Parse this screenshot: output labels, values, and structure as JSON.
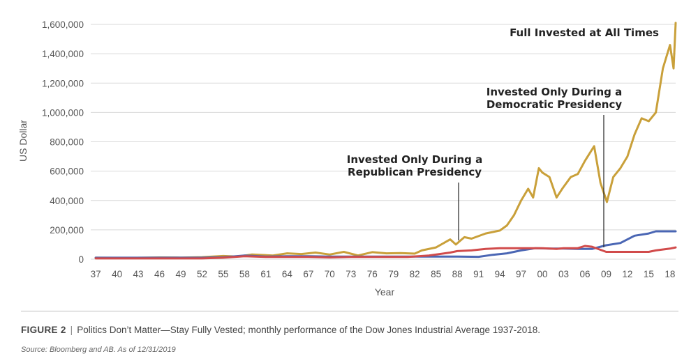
{
  "chart_data": {
    "type": "line",
    "ylabel": "US Dollar",
    "xlabel": "Year",
    "ylim": [
      0,
      1600000
    ],
    "yticks": [
      0,
      200000,
      400000,
      600000,
      800000,
      1000000,
      1200000,
      1400000,
      1600000
    ],
    "ytick_labels": [
      "0",
      "200,000",
      "400,000",
      "600,000",
      "800,000",
      "1,000,000",
      "1,200,000",
      "1,400,000",
      "1,600,000"
    ],
    "xlim": [
      1936.3,
      2018.8
    ],
    "xticks": [
      1937,
      1940,
      1943,
      1946,
      1949,
      1952,
      1955,
      1958,
      1961,
      1964,
      1967,
      1970,
      1973,
      1976,
      1979,
      1982,
      1985,
      1988,
      1991,
      1994,
      1997,
      2000,
      2003,
      2006,
      2009,
      2012,
      2015,
      2018
    ],
    "xtick_labels": [
      "37",
      "40",
      "43",
      "46",
      "49",
      "52",
      "55",
      "58",
      "61",
      "64",
      "67",
      "70",
      "73",
      "76",
      "79",
      "82",
      "85",
      "88",
      "91",
      "94",
      "97",
      "00",
      "03",
      "06",
      "09",
      "12",
      "15",
      "18"
    ],
    "grid": "horizontal",
    "series": [
      {
        "key": "full",
        "color": "#C9A03A",
        "points": [
          [
            1937,
            10000
          ],
          [
            1942,
            9000
          ],
          [
            1946,
            12000
          ],
          [
            1949,
            11000
          ],
          [
            1952,
            14000
          ],
          [
            1955,
            22000
          ],
          [
            1957,
            18000
          ],
          [
            1959,
            32000
          ],
          [
            1962,
            25000
          ],
          [
            1964,
            40000
          ],
          [
            1966,
            35000
          ],
          [
            1968,
            45000
          ],
          [
            1970,
            32000
          ],
          [
            1972,
            50000
          ],
          [
            1974,
            25000
          ],
          [
            1976,
            48000
          ],
          [
            1978,
            40000
          ],
          [
            1980,
            42000
          ],
          [
            1982,
            38000
          ],
          [
            1983,
            60000
          ],
          [
            1985,
            80000
          ],
          [
            1987,
            135000
          ],
          [
            1987.8,
            100000
          ],
          [
            1989,
            150000
          ],
          [
            1990,
            140000
          ],
          [
            1992,
            175000
          ],
          [
            1994,
            195000
          ],
          [
            1995,
            230000
          ],
          [
            1996,
            300000
          ],
          [
            1997,
            400000
          ],
          [
            1998,
            480000
          ],
          [
            1998.7,
            420000
          ],
          [
            1999.5,
            620000
          ],
          [
            2000,
            590000
          ],
          [
            2001,
            560000
          ],
          [
            2002,
            420000
          ],
          [
            2002.8,
            480000
          ],
          [
            2004,
            560000
          ],
          [
            2005,
            580000
          ],
          [
            2006,
            670000
          ],
          [
            2007.3,
            770000
          ],
          [
            2008.2,
            520000
          ],
          [
            2009.1,
            390000
          ],
          [
            2010,
            560000
          ],
          [
            2011,
            620000
          ],
          [
            2012,
            700000
          ],
          [
            2013,
            850000
          ],
          [
            2014,
            960000
          ],
          [
            2015,
            940000
          ],
          [
            2016,
            1000000
          ],
          [
            2017,
            1300000
          ],
          [
            2018,
            1460000
          ],
          [
            2018.5,
            1300000
          ],
          [
            2018.8,
            1610000
          ]
        ]
      },
      {
        "key": "democratic",
        "color": "#4A66B4",
        "points": [
          [
            1937,
            10000
          ],
          [
            1952,
            10000
          ],
          [
            1955,
            13000
          ],
          [
            1958,
            25000
          ],
          [
            1961,
            18000
          ],
          [
            1964,
            20000
          ],
          [
            1967,
            20000
          ],
          [
            1970,
            18000
          ],
          [
            1973,
            18000
          ],
          [
            1976,
            18000
          ],
          [
            1979,
            18000
          ],
          [
            1982,
            18000
          ],
          [
            1985,
            18000
          ],
          [
            1988,
            18000
          ],
          [
            1991,
            16000
          ],
          [
            1993,
            30000
          ],
          [
            1995,
            40000
          ],
          [
            1997,
            60000
          ],
          [
            1999,
            75000
          ],
          [
            2001,
            72000
          ],
          [
            2003,
            72000
          ],
          [
            2005,
            70000
          ],
          [
            2007,
            70000
          ],
          [
            2009,
            95000
          ],
          [
            2011,
            110000
          ],
          [
            2013,
            160000
          ],
          [
            2015,
            175000
          ],
          [
            2016,
            190000
          ],
          [
            2018.8,
            190000
          ]
        ]
      },
      {
        "key": "republican",
        "color": "#D14B4B",
        "points": [
          [
            1937,
            5000
          ],
          [
            1952,
            5000
          ],
          [
            1955,
            10000
          ],
          [
            1958,
            20000
          ],
          [
            1961,
            15000
          ],
          [
            1964,
            15000
          ],
          [
            1967,
            15000
          ],
          [
            1970,
            12000
          ],
          [
            1973,
            15000
          ],
          [
            1976,
            15000
          ],
          [
            1979,
            15000
          ],
          [
            1981,
            15000
          ],
          [
            1984,
            25000
          ],
          [
            1987,
            45000
          ],
          [
            1988,
            55000
          ],
          [
            1990,
            60000
          ],
          [
            1992,
            70000
          ],
          [
            1994,
            75000
          ],
          [
            1997,
            75000
          ],
          [
            2000,
            75000
          ],
          [
            2002,
            70000
          ],
          [
            2003,
            75000
          ],
          [
            2005,
            75000
          ],
          [
            2006,
            90000
          ],
          [
            2007,
            85000
          ],
          [
            2009,
            50000
          ],
          [
            2011,
            50000
          ],
          [
            2013,
            50000
          ],
          [
            2015,
            50000
          ],
          [
            2016,
            60000
          ],
          [
            2018,
            72000
          ],
          [
            2018.8,
            80000
          ]
        ]
      }
    ],
    "annotations": [
      {
        "lines": [
          "Full Invested at All Times"
        ]
      },
      {
        "lines": [
          "Invested Only During a",
          "Democratic Presidency"
        ]
      },
      {
        "lines": [
          "Invested Only During a",
          "Republican Presidency"
        ]
      }
    ]
  },
  "caption": {
    "figure_label": "FIGURE 2",
    "separator": "|",
    "text": "Politics Don’t Matter—Stay Fully Vested; monthly performance of the Dow Jones Industrial Average 1937-2018."
  },
  "source": "Source: Bloomberg and AB.  As of 12/31/2019"
}
